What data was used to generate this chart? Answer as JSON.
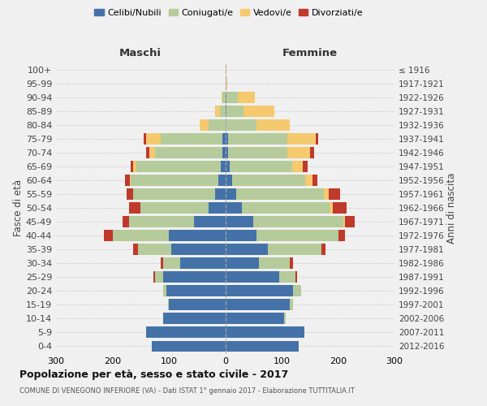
{
  "age_groups": [
    "0-4",
    "5-9",
    "10-14",
    "15-19",
    "20-24",
    "25-29",
    "30-34",
    "35-39",
    "40-44",
    "45-49",
    "50-54",
    "55-59",
    "60-64",
    "65-69",
    "70-74",
    "75-79",
    "80-84",
    "85-89",
    "90-94",
    "95-99",
    "100+"
  ],
  "birth_years": [
    "2012-2016",
    "2007-2011",
    "2002-2006",
    "1997-2001",
    "1992-1996",
    "1987-1991",
    "1982-1986",
    "1977-1981",
    "1972-1976",
    "1967-1971",
    "1962-1966",
    "1957-1961",
    "1952-1956",
    "1947-1951",
    "1942-1946",
    "1937-1941",
    "1932-1936",
    "1927-1931",
    "1922-1926",
    "1917-1921",
    "≤ 1916"
  ],
  "males": {
    "celibe": [
      130,
      140,
      110,
      100,
      105,
      110,
      80,
      95,
      100,
      55,
      30,
      18,
      12,
      8,
      5,
      5,
      0,
      0,
      0,
      0,
      0
    ],
    "coniugato": [
      0,
      0,
      0,
      2,
      5,
      15,
      30,
      60,
      100,
      115,
      120,
      145,
      155,
      150,
      120,
      110,
      30,
      10,
      5,
      0,
      0
    ],
    "vedovo": [
      0,
      0,
      0,
      0,
      0,
      0,
      0,
      0,
      0,
      0,
      0,
      0,
      2,
      5,
      10,
      25,
      15,
      8,
      2,
      0,
      0
    ],
    "divorziato": [
      0,
      0,
      0,
      0,
      0,
      2,
      5,
      8,
      15,
      12,
      20,
      12,
      8,
      5,
      5,
      5,
      0,
      0,
      0,
      0,
      0
    ]
  },
  "females": {
    "nubile": [
      130,
      140,
      105,
      115,
      120,
      95,
      60,
      75,
      55,
      50,
      30,
      20,
      12,
      8,
      5,
      5,
      0,
      2,
      2,
      0,
      0
    ],
    "coniugata": [
      0,
      0,
      2,
      5,
      15,
      30,
      55,
      95,
      145,
      160,
      155,
      155,
      130,
      110,
      105,
      105,
      55,
      30,
      20,
      2,
      0
    ],
    "vedova": [
      0,
      0,
      0,
      0,
      0,
      0,
      0,
      0,
      0,
      2,
      5,
      8,
      12,
      20,
      40,
      50,
      60,
      55,
      30,
      2,
      2
    ],
    "divorziata": [
      0,
      0,
      0,
      0,
      0,
      2,
      5,
      8,
      12,
      18,
      25,
      20,
      10,
      8,
      8,
      5,
      0,
      0,
      0,
      0,
      0
    ]
  },
  "colors": {
    "single": "#4472a8",
    "married": "#b5cb9b",
    "widowed": "#f5c96e",
    "divorced": "#c0392b"
  },
  "legend_labels": [
    "Celibi/Nubili",
    "Coniugati/e",
    "Vedovi/e",
    "Divorziati/e"
  ],
  "title": "Popolazione per età, sesso e stato civile - 2017",
  "subtitle": "COMUNE DI VENEGONO INFERIORE (VA) - Dati ISTAT 1° gennaio 2017 - Elaborazione TUTTITALIA.IT",
  "label_males": "Maschi",
  "label_females": "Femmine",
  "ylabel_left": "Fasce di età",
  "ylabel_right": "Anni di nascita",
  "xlim": 300,
  "bg_color": "#f0f0f0"
}
